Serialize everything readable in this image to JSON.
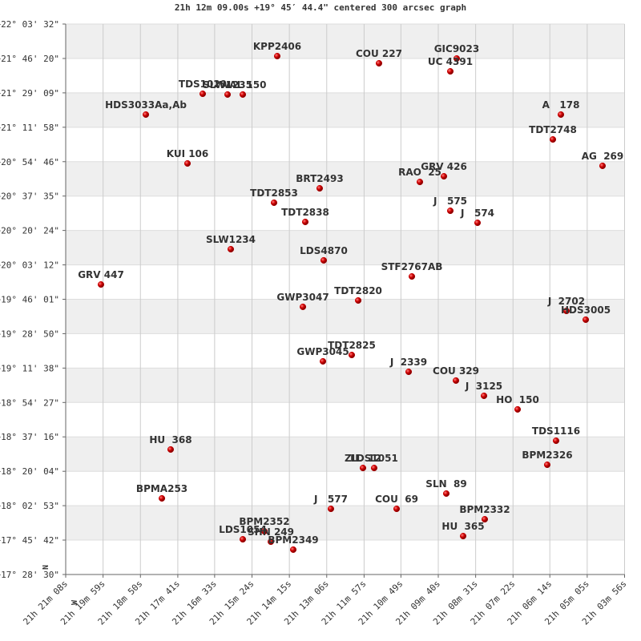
{
  "chart_data": {
    "type": "scatter",
    "title": "21h 12m 09.00s +19° 45′ 44.4\" centered 300 arcsec graph",
    "annotations": [
      "N",
      "W"
    ],
    "color": "#c40000",
    "label_color": "#a00000",
    "grid": true,
    "xlim": [
      1268,
      236
    ],
    "ylim": [
      17.475,
      22.0589
    ],
    "xticks": [
      {
        "value": 1268,
        "label": "21h 21m 08s"
      },
      {
        "value": 1199,
        "label": "21h 19m 59s"
      },
      {
        "value": 1130,
        "label": "21h 18m 50s"
      },
      {
        "value": 1061,
        "label": "21h 17m 41s"
      },
      {
        "value": 993,
        "label": "21h 16m 33s"
      },
      {
        "value": 924,
        "label": "21h 15m 24s"
      },
      {
        "value": 855,
        "label": "21h 14m 15s"
      },
      {
        "value": 786,
        "label": "21h 13m 06s"
      },
      {
        "value": 717,
        "label": "21h 11m 57s"
      },
      {
        "value": 649,
        "label": "21h 10m 49s"
      },
      {
        "value": 580,
        "label": "21h 09m 40s"
      },
      {
        "value": 511,
        "label": "21h 08m 31s"
      },
      {
        "value": 442,
        "label": "21h 07m 22s"
      },
      {
        "value": 374,
        "label": "21h 06m 14s"
      },
      {
        "value": 305,
        "label": "21h 05m 05s"
      },
      {
        "value": 236,
        "label": "21h 03m 56s"
      }
    ],
    "yticks": [
      {
        "value": 22.0589,
        "label": "+22° 03' 32\""
      },
      {
        "value": 21.7722,
        "label": "+21° 46' 20\""
      },
      {
        "value": 21.4858,
        "label": "+21° 29' 09\""
      },
      {
        "value": 21.1994,
        "label": "+21° 11' 58\""
      },
      {
        "value": 20.9128,
        "label": "+20° 54' 46\""
      },
      {
        "value": 20.6264,
        "label": "+20° 37' 35\""
      },
      {
        "value": 20.34,
        "label": "+20° 20' 24\""
      },
      {
        "value": 20.0533,
        "label": "+20° 03' 12\""
      },
      {
        "value": 19.7669,
        "label": "+19° 46' 01\""
      },
      {
        "value": 19.4806,
        "label": "+19° 28' 50\""
      },
      {
        "value": 19.1939,
        "label": "+19° 11' 38\""
      },
      {
        "value": 18.9075,
        "label": "+18° 54' 27\""
      },
      {
        "value": 18.6211,
        "label": "+18° 37' 16\""
      },
      {
        "value": 18.3344,
        "label": "+18° 20' 04\""
      },
      {
        "value": 18.0481,
        "label": "+18° 02' 53\""
      },
      {
        "value": 17.7617,
        "label": "+17° 45' 42\""
      },
      {
        "value": 17.475,
        "label": "+17° 28' 30\""
      }
    ],
    "point_labels": [
      "KPP2406",
      "COU 227",
      "GIC9023",
      "UC 4391",
      "TDS1029",
      "SLW1235",
      "WAL 150",
      "HDS3033Aa,Ab",
      "A   178",
      "TDT2748",
      "AG  269",
      "KUI 106",
      "BRT2493",
      "RAO  25",
      "GRV 426",
      "TDT2853",
      "TDT2838",
      "J   575",
      "J   574",
      "SLW1234",
      "LDS4870",
      "STF2767AB",
      "GRV 447",
      "TDT2820",
      "GWP3047",
      "J  2702",
      "HDS3005",
      "TDT2825",
      "GWP3045",
      "J  2339",
      "COU 329",
      "J  3125",
      "HO  150",
      "TDS1116",
      "HU  368",
      "BPM2326",
      "ZIL  12",
      "LDS1051",
      "BPMA253",
      "SLN  89",
      "J   577",
      "COU  69",
      "BPM2332",
      "BPM2352",
      "LDS1054",
      "SHN 249",
      "HU  365",
      "BPM2349"
    ],
    "x": [
      877.4,
      689.5,
      546,
      557.8,
      1015,
      969.1,
      941.0,
      1120.0,
      353.6,
      368.4,
      276.7,
      1043.1,
      799,
      614,
      569.6,
      883.3,
      825.6,
      557.8,
      507.5,
      963.2,
      791.6,
      628.8,
      1202.9,
      727.9,
      830.0,
      343.3,
      307.7,
      739.8,
      793.0,
      634.7,
      547.4,
      495.6,
      433.5,
      362.5,
      1074.2,
      378.8,
      719.1,
      698.4,
      1090.4,
      565.2,
      778.3,
      656.9,
      494.2,
      901.1,
      941.0,
      889.2,
      534.1,
      847.8
    ],
    "y": [
      21.792,
      21.732,
      21.772,
      21.665,
      21.478,
      21.472,
      21.472,
      21.305,
      21.305,
      21.098,
      20.878,
      20.898,
      20.691,
      20.744,
      20.791,
      20.571,
      20.411,
      20.504,
      20.404,
      20.184,
      20.091,
      19.957,
      19.89,
      19.757,
      19.704,
      19.67,
      19.597,
      19.303,
      19.25,
      19.163,
      19.09,
      18.963,
      18.85,
      18.589,
      18.516,
      18.389,
      18.362,
      18.362,
      18.109,
      18.149,
      18.022,
      18.022,
      17.935,
      17.835,
      17.768,
      17.748,
      17.795,
      17.682
    ]
  }
}
